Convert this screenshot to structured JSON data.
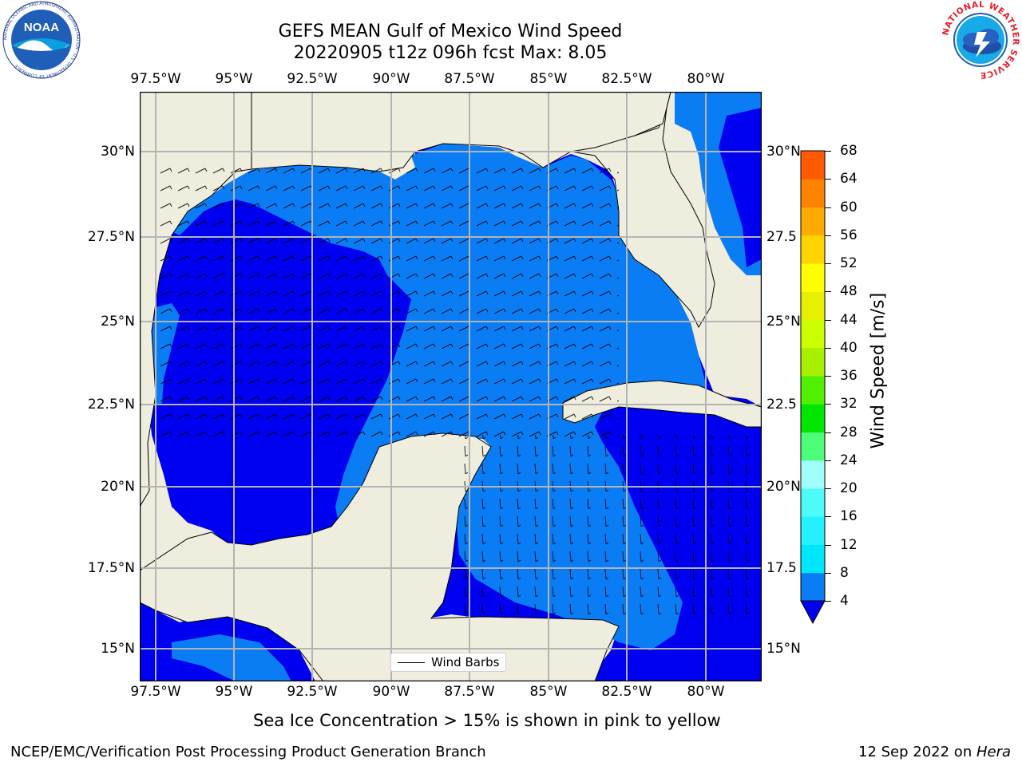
{
  "header": {
    "title_line1": "GEFS MEAN Gulf of Mexico Wind Speed",
    "title_line2": "20220905 t12z 096h fcst   Max: 8.05"
  },
  "logos": {
    "noaa_text": "NOAA",
    "noaa_ring": "NATIONAL OCEANIC AND ATMOSPHERIC ADMINISTRATION · U.S. DEPARTMENT OF COMMERCE",
    "nws_ring": "NATIONAL WEATHER SERVICE"
  },
  "map": {
    "lon_labels": [
      "97.5°W",
      "95°W",
      "92.5°W",
      "90°W",
      "87.5°W",
      "85°W",
      "82.5°W",
      "80°W"
    ],
    "lat_labels": [
      "30°N",
      "27.5°N",
      "25°N",
      "22.5°N",
      "20°N",
      "17.5°N",
      "15°N"
    ],
    "lon_labels_right": [
      "30°N",
      "27.5",
      "25°N",
      "22.5",
      "20°N",
      "17.5",
      "15°N"
    ],
    "legend_label": "Wind Barbs",
    "colors": {
      "land": "#efedde",
      "wind_4_8": "#0a7df5",
      "wind_below_4": "#0000f0",
      "grid": "#b4b4b4"
    }
  },
  "colorbar": {
    "label": "Wind Speed [m/s]",
    "ticks": [
      "68",
      "64",
      "60",
      "56",
      "52",
      "48",
      "44",
      "40",
      "36",
      "32",
      "28",
      "24",
      "20",
      "16",
      "12",
      "8",
      "4"
    ],
    "colors": [
      "#0000f0",
      "#0a7df5",
      "#00e6ff",
      "#25f0ff",
      "#4cfbfa",
      "#a0fffa",
      "#4dff78",
      "#00e600",
      "#50f000",
      "#a6f000",
      "#ccff00",
      "#e6f000",
      "#ffff00",
      "#ffd400",
      "#ffaa00",
      "#ff8200",
      "#ff5a00",
      "#ff2800",
      "#ff0000"
    ]
  },
  "footer": {
    "note": "Sea Ice Concentration > 15% is shown in pink to yellow",
    "left": "NCEP/EMC/Verification Post Processing Product Generation Branch",
    "right_prefix": "12 Sep 2022 on ",
    "right_host": "Hera"
  }
}
